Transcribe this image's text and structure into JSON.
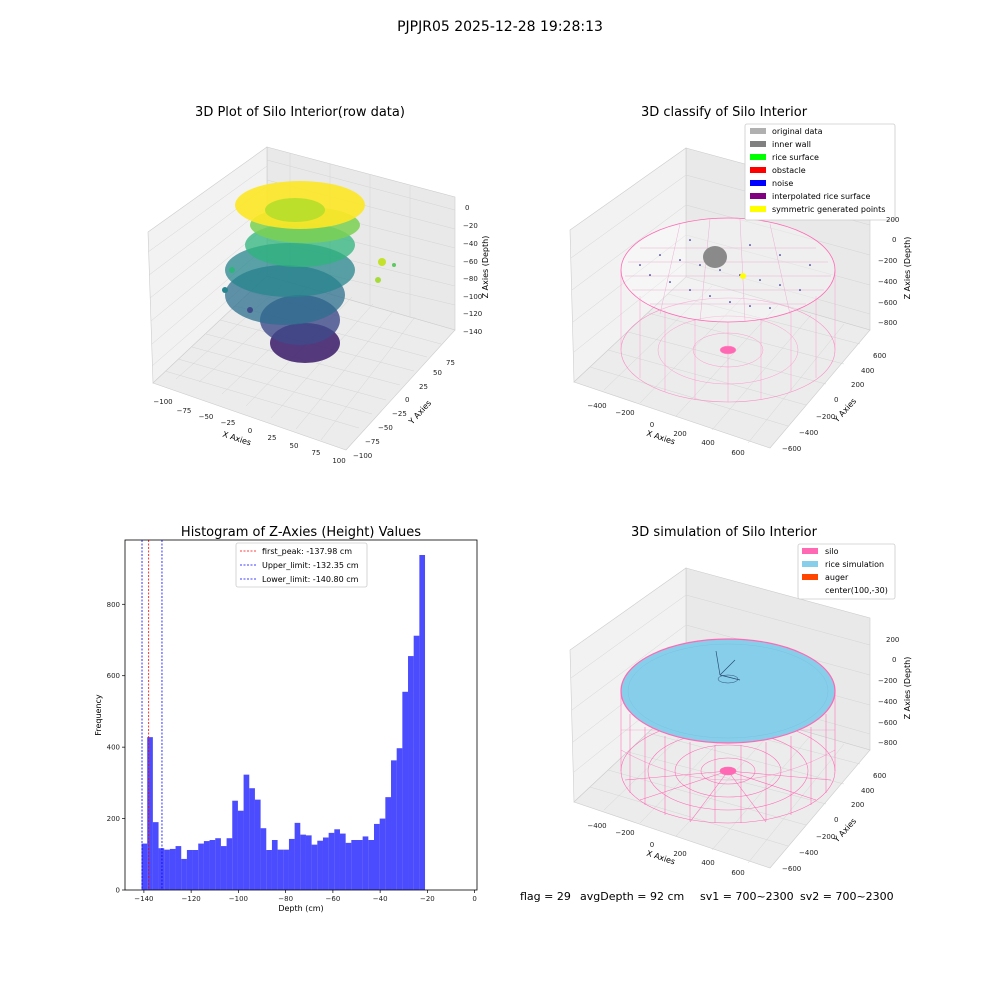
{
  "figure": {
    "suptitle": "PJPJR05 2025-12-28 19:28:13",
    "footer": {
      "flag": "flag = 29",
      "avg": "avgDepth = 92 cm",
      "sv1": "sv1 = 700~2300",
      "sv2": "sv2 = 700~2300"
    }
  },
  "chart_data": [
    {
      "type": "scatter",
      "title": "3D Plot of Silo Interior(row data)",
      "xlabel": "X Axies",
      "ylabel": "Y Axies",
      "zlabel": "Z Axies (Depth)",
      "xticks": [
        "−100",
        "−75",
        "−50",
        "−25",
        "0",
        "25",
        "50",
        "75",
        "100"
      ],
      "yticks": [
        "−100",
        "−75",
        "−50",
        "−25",
        "0",
        "25",
        "50",
        "75"
      ],
      "zticks": [
        "−140",
        "−120",
        "−100",
        "−80",
        "−60",
        "−40",
        "−20",
        "0"
      ],
      "colormap": "viridis",
      "grid": true
    },
    {
      "type": "scatter",
      "title": "3D classify of Silo Interior",
      "xlabel": "X Axies",
      "ylabel": "Y Axies",
      "zlabel": "Z Axies (Depth)",
      "xticks": [
        "−400",
        "−200",
        "0",
        "200",
        "400",
        "600"
      ],
      "yticks": [
        "−600",
        "−400",
        "−200",
        "0",
        "200",
        "400",
        "600"
      ],
      "zticks": [
        "−800",
        "−600",
        "−400",
        "−200",
        "0",
        "200"
      ],
      "legend": [
        {
          "label": "original data",
          "color": "#b0b0b0"
        },
        {
          "label": "inner wall",
          "color": "#808080"
        },
        {
          "label": "rice surface",
          "color": "#00ff00"
        },
        {
          "label": "obstacle",
          "color": "#ff0000"
        },
        {
          "label": "noise",
          "color": "#0000ff"
        },
        {
          "label": "interpolated rice surface",
          "color": "#800080"
        },
        {
          "label": "symmetric generated points",
          "color": "#ffff00"
        }
      ],
      "legend_position": "top-right",
      "grid": true
    },
    {
      "type": "bar",
      "title": "Histogram of Z-Axies (Height) Values",
      "xlabel": "Depth (cm)",
      "ylabel": "Frequency",
      "xlim": [
        -148,
        1
      ],
      "ylim": [
        0,
        980
      ],
      "xticks": [
        -140,
        -120,
        -100,
        -80,
        -60,
        -40,
        -20,
        0
      ],
      "yticks": [
        0,
        200,
        400,
        600,
        800
      ],
      "bin_edges_start": -141,
      "bin_width": 2.4,
      "values": [
        130,
        428,
        190,
        117,
        113,
        115,
        123,
        87,
        112,
        112,
        130,
        137,
        140,
        145,
        123,
        145,
        250,
        222,
        323,
        285,
        253,
        173,
        112,
        140,
        113,
        113,
        143,
        188,
        155,
        153,
        127,
        138,
        147,
        160,
        170,
        158,
        132,
        140,
        140,
        150,
        140,
        185,
        200,
        260,
        363,
        397,
        555,
        655,
        712,
        938
      ],
      "bar_color": "#0000ff",
      "bar_alpha": 0.7,
      "vlines": [
        {
          "label": "first_peak: -137.98 cm",
          "x": -137.98,
          "color": "#ff0000"
        },
        {
          "label": "Upper_limit: -132.35 cm",
          "x": -132.35,
          "color": "#0000ff"
        },
        {
          "label": "Lower_limit: -140.80 cm",
          "x": -140.8,
          "color": "#0000ff"
        }
      ],
      "legend_position": "top-center"
    },
    {
      "type": "scatter",
      "title": "3D simulation of Silo Interior",
      "xlabel": "X Axies",
      "ylabel": "Y Axies",
      "zlabel": "Z Axies (Depth)",
      "xticks": [
        "−400",
        "−200",
        "0",
        "200",
        "400",
        "600"
      ],
      "yticks": [
        "−600",
        "−400",
        "−200",
        "0",
        "200",
        "400",
        "600"
      ],
      "zticks": [
        "−800",
        "−600",
        "−400",
        "−200",
        "0",
        "200"
      ],
      "legend": [
        {
          "label": "silo",
          "color": "#ff69b4"
        },
        {
          "label": "rice simulation",
          "color": "#87ceeb"
        },
        {
          "label": "auger",
          "color": "#ff4500"
        },
        {
          "label": "center(100,-30)",
          "color": ""
        }
      ],
      "legend_position": "top-right",
      "grid": true
    }
  ]
}
